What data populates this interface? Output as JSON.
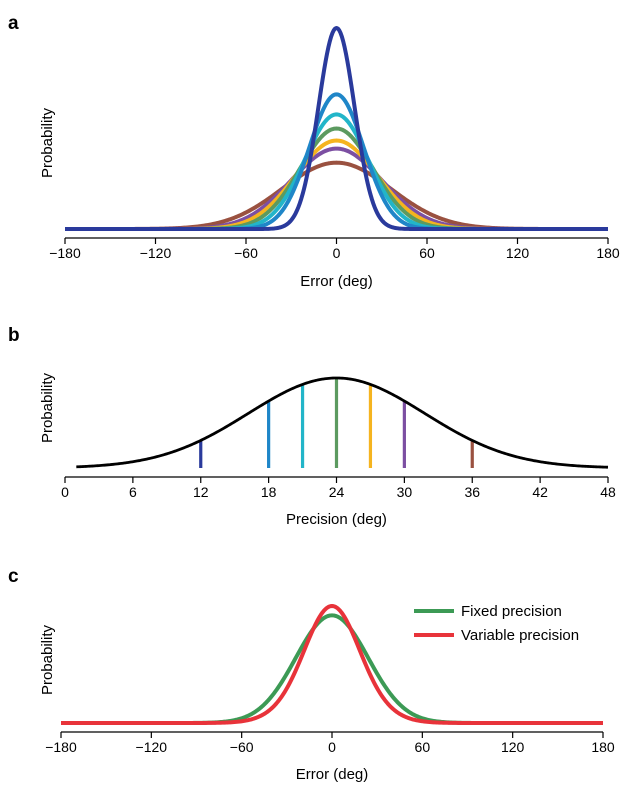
{
  "chart_data": [
    {
      "panel": "a",
      "type": "line",
      "xlabel": "Error (deg)",
      "ylabel": "Probability",
      "xlim": [
        -180,
        180
      ],
      "xticks": [
        -180,
        -120,
        -60,
        0,
        60,
        120,
        180
      ],
      "xtick_labels": [
        "−180",
        "−120",
        "−60",
        "0",
        "60",
        "120",
        "180"
      ],
      "series": [
        {
          "color": "#2a3a9c",
          "kind": "gaussian",
          "mean": 0,
          "sd": 12,
          "peak": 1.0
        },
        {
          "color": "#1f86c8",
          "kind": "gaussian",
          "mean": 0,
          "sd": 18,
          "peak": 0.67
        },
        {
          "color": "#22b5c9",
          "kind": "gaussian",
          "mean": 0,
          "sd": 21,
          "peak": 0.57
        },
        {
          "color": "#5c9a60",
          "kind": "gaussian",
          "mean": 0,
          "sd": 24,
          "peak": 0.5
        },
        {
          "color": "#f5b41f",
          "kind": "gaussian",
          "mean": 0,
          "sd": 27,
          "peak": 0.44
        },
        {
          "color": "#7c4fa2",
          "kind": "gaussian",
          "mean": 0,
          "sd": 30,
          "peak": 0.4
        },
        {
          "color": "#9a5140",
          "kind": "gaussian",
          "mean": 0,
          "sd": 36,
          "peak": 0.33
        }
      ]
    },
    {
      "panel": "b",
      "type": "line",
      "xlabel": "Precision (deg)",
      "ylabel": "Probability",
      "xlim": [
        0,
        48
      ],
      "xticks": [
        0,
        6,
        12,
        18,
        24,
        30,
        36,
        42,
        48
      ],
      "xtick_labels": [
        "0",
        "6",
        "12",
        "18",
        "24",
        "30",
        "36",
        "42",
        "48"
      ],
      "curve": {
        "color": "#000000",
        "kind": "gaussian",
        "mean": 24,
        "sd": 7.8,
        "x_start": 1,
        "x_end": 48,
        "peak": 1.0
      },
      "markers": [
        {
          "x": 12,
          "color": "#2a3a9c"
        },
        {
          "x": 18,
          "color": "#1f86c8"
        },
        {
          "x": 21,
          "color": "#22b5c9"
        },
        {
          "x": 24,
          "color": "#5c9a60"
        },
        {
          "x": 27,
          "color": "#f5b41f"
        },
        {
          "x": 30,
          "color": "#7c4fa2"
        },
        {
          "x": 36,
          "color": "#9a5140"
        }
      ]
    },
    {
      "panel": "c",
      "type": "line",
      "xlabel": "Error (deg)",
      "ylabel": "Probability",
      "xlim": [
        -180,
        180
      ],
      "xticks": [
        -180,
        -120,
        -60,
        0,
        60,
        120,
        180
      ],
      "xtick_labels": [
        "−180",
        "−120",
        "−60",
        "0",
        "60",
        "120",
        "180"
      ],
      "legend": "top-right",
      "series": [
        {
          "name": "Fixed precision",
          "color": "#3c9a55",
          "kind": "gaussian",
          "mean": 0,
          "sd": 24,
          "peak": 0.92
        },
        {
          "name": "Variable precision",
          "color": "#e8333a",
          "kind": "laplace-like",
          "mean": 0,
          "sd": 21,
          "peak": 1.0
        }
      ]
    }
  ],
  "panels": {
    "a": {
      "letter": "a"
    },
    "b": {
      "letter": "b"
    },
    "c": {
      "letter": "c"
    }
  }
}
